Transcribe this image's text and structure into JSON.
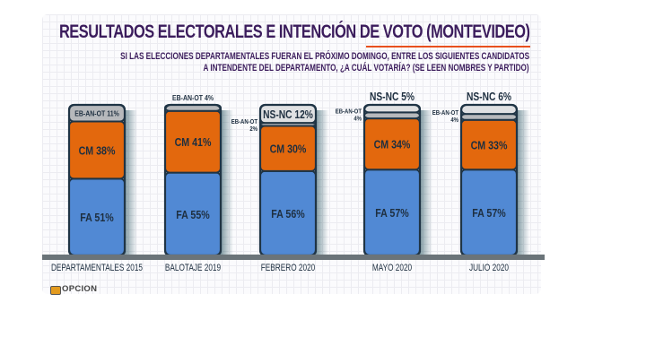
{
  "header": {
    "title": "RESULTADOS ELECTORALES E INTENCIÓN DE VOTO  (MONTEVIDEO)",
    "subtitle_line1": "SI LAS ELECCIONES DEPARTAMENTALES FUERAN EL PRÓXIMO DOMINGO, ENTRE LOS SIGUIENTES CANDIDATOS",
    "subtitle_line2": "A INTENDENTE DEL DEPARTAMENTO, ¿A CUÁL VOTARÍA? (SE LEEN NOMBRES Y PARTIDO)"
  },
  "logo": {
    "text": "OPCION"
  },
  "colors": {
    "FA": "#5189d4",
    "CM": "#e3680d",
    "EB-AN-OT": "#b7b9bc",
    "NS-NC": "#dfe0e2",
    "outline": "#1f3445",
    "baseline": "#6b7479",
    "title": "#3b1c5c",
    "underline": "#e8501e"
  },
  "chart_data": {
    "type": "bar",
    "stacked": true,
    "title": "RESULTADOS ELECTORALES E INTENCIÓN DE VOTO (MONTEVIDEO)",
    "xlabel": "",
    "ylabel": "",
    "ylim": [
      0,
      100
    ],
    "grid": true,
    "categories": [
      "DEPARTAMENTALES 2015",
      "BALOTAJE 2019",
      "FEBRERO 2020",
      "MAYO 2020",
      "JULIO 2020"
    ],
    "series": [
      {
        "name": "FA",
        "values": [
          51,
          55,
          56,
          57,
          57
        ]
      },
      {
        "name": "CM",
        "values": [
          38,
          41,
          30,
          34,
          33
        ]
      },
      {
        "name": "EB-AN-OT",
        "values": [
          11,
          4,
          2,
          4,
          4
        ]
      },
      {
        "name": "NS-NC",
        "values": [
          0,
          0,
          12,
          5,
          6
        ]
      }
    ],
    "labels": {
      "FA": [
        "FA 51%",
        "FA 55%",
        "FA 56%",
        "FA 57%",
        "FA 57%"
      ],
      "CM": [
        "CM 38%",
        "CM 41%",
        "CM 30%",
        "CM 34%",
        "CM 33%"
      ],
      "EB-AN-OT": [
        "EB-AN-OT 11%",
        "EB-AN-OT 4%",
        "EB-AN-OT 2%",
        "EB-AN-OT 4%",
        "EB-AN-OT 4%"
      ],
      "NS-NC": [
        "",
        "",
        "NS-NC 12%",
        "NS-NC 5%",
        "NS-NC 6%"
      ]
    }
  }
}
